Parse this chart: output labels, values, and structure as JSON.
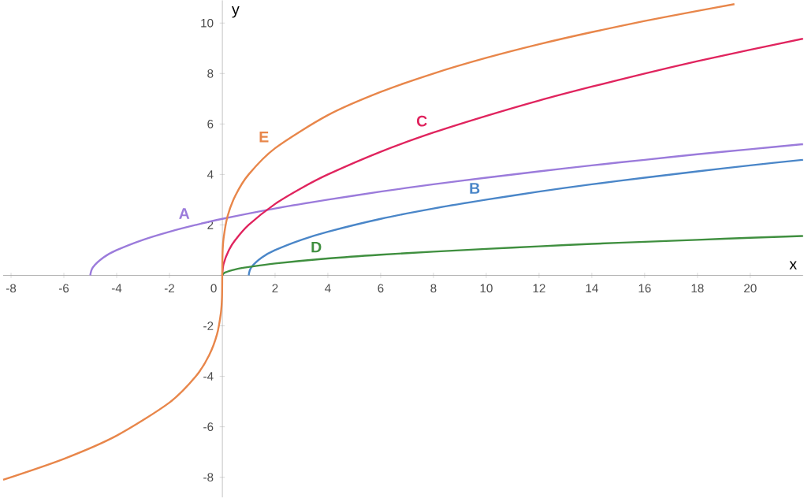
{
  "chart_data": {
    "type": "line",
    "xlabel": "x",
    "ylabel": "y",
    "xlim": [
      -8.3,
      22
    ],
    "ylim": [
      -8.8,
      10.9
    ],
    "xticks": [
      -8,
      -6,
      -4,
      -2,
      0,
      2,
      4,
      6,
      8,
      10,
      12,
      14,
      16,
      18,
      20
    ],
    "yticks": [
      -8,
      -6,
      -4,
      -2,
      {
        "value": 0,
        "label": null
      },
      2,
      4,
      6,
      8,
      10
    ],
    "grid": false,
    "legend": false,
    "marker": "none",
    "line_style": "solid",
    "series": [
      {
        "name": "A",
        "color": "#9b7bdb",
        "x": [
          -5,
          -4.9,
          -4.5,
          -4,
          -3,
          -2,
          -1,
          0,
          2,
          4,
          6,
          8,
          10,
          12,
          14,
          16,
          18,
          20,
          22
        ],
        "values": [
          0,
          0.32,
          0.71,
          1,
          1.41,
          1.73,
          2,
          2.24,
          2.65,
          3,
          3.32,
          3.61,
          3.87,
          4.12,
          4.36,
          4.58,
          4.8,
          5,
          5.2
        ]
      },
      {
        "name": "B",
        "color": "#4a86c8",
        "x": [
          1,
          1.1,
          1.5,
          2,
          3,
          4,
          6,
          8,
          10,
          12,
          14,
          16,
          18,
          20,
          22
        ],
        "values": [
          0,
          0.32,
          0.71,
          1,
          1.41,
          1.73,
          2.24,
          2.65,
          3,
          3.32,
          3.61,
          3.87,
          4.12,
          4.36,
          4.58
        ]
      },
      {
        "name": "C",
        "color": "#e0245e",
        "x": [
          0,
          0.05,
          0.25,
          0.5,
          1,
          2,
          3,
          4,
          6,
          8,
          10,
          12,
          14,
          16,
          18,
          20,
          22
        ],
        "values": [
          0,
          0.45,
          1,
          1.41,
          2,
          2.83,
          3.46,
          4,
          4.9,
          5.66,
          6.32,
          6.93,
          7.48,
          8,
          8.49,
          8.94,
          9.38
        ]
      },
      {
        "name": "D",
        "color": "#3f8f3f",
        "x": [
          0,
          0.1,
          0.5,
          1,
          2,
          4,
          6,
          8,
          10,
          12,
          14,
          16,
          18,
          20,
          22
        ],
        "values": [
          0,
          0.11,
          0.24,
          0.33,
          0.47,
          0.67,
          0.82,
          0.94,
          1.05,
          1.15,
          1.25,
          1.33,
          1.41,
          1.49,
          1.56
        ]
      },
      {
        "name": "E",
        "color": "#e8864a",
        "x": [
          -8.3,
          -6,
          -4,
          -2,
          -1,
          -0.5,
          -0.2,
          -0.05,
          -0.01,
          0,
          0.01,
          0.05,
          0.2,
          0.5,
          1,
          2,
          4,
          6,
          8,
          10,
          12,
          14,
          16,
          18,
          19.4
        ],
        "values": [
          -8.1,
          -7.27,
          -6.35,
          -5.04,
          -4,
          -3.17,
          -2.34,
          -1.47,
          -0.86,
          0,
          0.86,
          1.47,
          2.34,
          3.17,
          4,
          5.04,
          6.35,
          7.27,
          8,
          8.62,
          9.16,
          9.64,
          10.08,
          10.48,
          10.75
        ]
      }
    ]
  }
}
